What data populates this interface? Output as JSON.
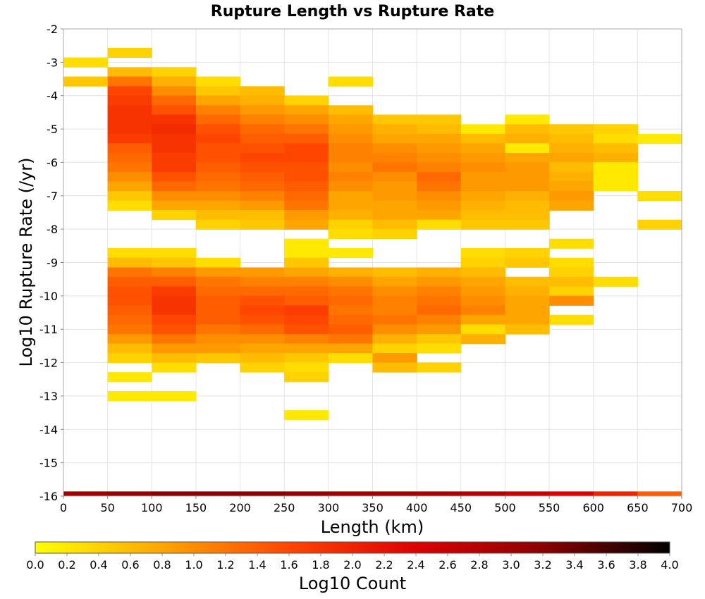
{
  "chart_data": {
    "type": "heatmap",
    "title": "Rupture Length vs Rupture Rate",
    "xlabel": "Length (km)",
    "ylabel": "Log10 Rupture Rate (/yr)",
    "xlim": [
      0,
      700
    ],
    "ylim": [
      -16,
      -2
    ],
    "x_ticks": [
      "0",
      "50",
      "100",
      "150",
      "200",
      "250",
      "300",
      "350",
      "400",
      "450",
      "500",
      "550",
      "600",
      "650",
      "700"
    ],
    "y_ticks": [
      "-2",
      "-3",
      "-4",
      "-5",
      "-6",
      "-7",
      "-8",
      "-9",
      "-10",
      "-11",
      "-12",
      "-13",
      "-14",
      "-15",
      "-16"
    ],
    "x_bin_width": 50,
    "y_bin_height": 0.286,
    "grid": true,
    "colorbar": {
      "label": "Log10 Count",
      "min": 0.0,
      "max": 4.0,
      "ticks": [
        "0.0",
        "0.2",
        "0.4",
        "0.6",
        "0.8",
        "1.0",
        "1.2",
        "1.4",
        "1.6",
        "1.8",
        "2.0",
        "2.2",
        "2.4",
        "2.6",
        "2.8",
        "3.0",
        "3.2",
        "3.4",
        "3.6",
        "3.8",
        "4.0"
      ],
      "colors": [
        "#ffff00",
        "#ffa500",
        "#ff4500",
        "#dd0000",
        "#8b0000",
        "#000000"
      ],
      "placement": "bottom"
    },
    "cells": [
      {
        "x": 0,
        "y": [
          -3.0,
          -3.57
        ],
        "v": [
          0.3,
          0.5
        ]
      },
      {
        "x": 50,
        "y": [
          -2.71,
          -3.29,
          -3.57,
          -3.86,
          -4.14,
          -4.43,
          -4.71,
          -5.0,
          -5.29,
          -5.57,
          -5.86,
          -6.14,
          -6.43,
          -6.71,
          -7.0,
          -7.29
        ],
        "v": [
          0.4,
          0.6,
          1.2,
          1.6,
          1.7,
          1.8,
          1.8,
          1.8,
          1.7,
          1.4,
          1.3,
          1.2,
          1.0,
          0.8,
          0.5,
          0.3
        ]
      },
      {
        "x": 100,
        "y": [
          -3.29,
          -3.57,
          -3.86,
          -4.14,
          -4.43,
          -4.71,
          -5.0,
          -5.29,
          -5.57,
          -5.86,
          -6.14,
          -6.43,
          -6.71,
          -7.0,
          -7.29,
          -7.57
        ],
        "v": [
          0.4,
          0.7,
          1.0,
          1.3,
          1.5,
          1.8,
          1.9,
          1.8,
          1.8,
          1.7,
          1.7,
          1.5,
          1.3,
          1.0,
          0.8,
          0.4
        ]
      },
      {
        "x": 150,
        "y": [
          -3.57,
          -3.86,
          -4.14,
          -4.43,
          -4.71,
          -5.0,
          -5.29,
          -5.57,
          -5.86,
          -6.14,
          -6.43,
          -6.71,
          -7.0,
          -7.29,
          -7.57,
          -7.86
        ],
        "v": [
          0.3,
          0.5,
          0.8,
          1.1,
          1.3,
          1.5,
          1.6,
          1.5,
          1.5,
          1.4,
          1.3,
          1.2,
          1.0,
          0.8,
          0.6,
          0.4
        ]
      },
      {
        "x": 200,
        "y": [
          -3.86,
          -4.14,
          -4.43,
          -4.71,
          -5.0,
          -5.29,
          -5.57,
          -5.86,
          -6.14,
          -6.43,
          -6.71,
          -7.0,
          -7.29,
          -7.57,
          -7.86
        ],
        "v": [
          0.6,
          0.7,
          0.9,
          1.1,
          1.3,
          1.4,
          1.5,
          1.6,
          1.5,
          1.4,
          1.3,
          1.1,
          0.9,
          0.6,
          0.5
        ]
      },
      {
        "x": 250,
        "y": [
          -4.14,
          -4.43,
          -4.71,
          -5.0,
          -5.29,
          -5.57,
          -5.86,
          -6.14,
          -6.43,
          -6.71,
          -7.0,
          -7.29,
          -7.57,
          -7.86
        ],
        "v": [
          0.4,
          0.8,
          1.0,
          1.2,
          1.4,
          1.6,
          1.6,
          1.5,
          1.5,
          1.4,
          1.3,
          1.2,
          0.9,
          0.8
        ]
      },
      {
        "x": 300,
        "y": [
          -3.57,
          -4.43,
          -4.71,
          -5.0,
          -5.29,
          -5.57,
          -5.86,
          -6.14,
          -6.43,
          -6.71,
          -7.0,
          -7.29,
          -7.57,
          -7.86,
          -8.14
        ],
        "v": [
          0.3,
          0.6,
          0.8,
          0.9,
          1.0,
          1.1,
          1.1,
          1.0,
          1.1,
          1.0,
          0.8,
          0.8,
          0.7,
          0.4,
          0.3
        ]
      },
      {
        "x": 350,
        "y": [
          -4.71,
          -5.0,
          -5.29,
          -5.57,
          -5.86,
          -6.14,
          -6.43,
          -6.71,
          -7.0,
          -7.29,
          -7.57,
          -7.86,
          -8.14
        ],
        "v": [
          0.5,
          0.7,
          0.8,
          1.0,
          1.1,
          1.2,
          1.0,
          0.9,
          0.9,
          0.8,
          0.8,
          0.6,
          0.4
        ]
      },
      {
        "x": 400,
        "y": [
          -4.71,
          -5.0,
          -5.29,
          -5.57,
          -5.86,
          -6.14,
          -6.43,
          -6.71,
          -7.0,
          -7.29,
          -7.57,
          -7.86
        ],
        "v": [
          0.5,
          0.6,
          0.8,
          0.9,
          1.0,
          1.1,
          1.3,
          1.2,
          1.0,
          0.9,
          0.8,
          0.3
        ]
      },
      {
        "x": 450,
        "y": [
          -5.0,
          -5.29,
          -5.57,
          -5.86,
          -6.14,
          -6.43,
          -6.71,
          -7.0,
          -7.29,
          -7.57,
          -7.86
        ],
        "v": [
          0.2,
          0.6,
          0.8,
          0.9,
          1.0,
          0.9,
          0.9,
          0.8,
          0.7,
          0.6,
          0.5
        ]
      },
      {
        "x": 500,
        "y": [
          -4.71,
          -5.0,
          -5.29,
          -5.57,
          -5.86,
          -6.14,
          -6.43,
          -6.71,
          -7.0,
          -7.29,
          -7.57,
          -7.86
        ],
        "v": [
          0.2,
          0.6,
          0.7,
          0.2,
          0.8,
          0.9,
          0.9,
          0.9,
          0.7,
          0.6,
          0.6,
          0.5
        ]
      },
      {
        "x": 550,
        "y": [
          -5.0,
          -5.29,
          -5.57,
          -5.86,
          -6.14,
          -6.43,
          -6.71,
          -7.0,
          -7.29
        ],
        "v": [
          0.5,
          0.6,
          0.7,
          0.8,
          0.6,
          0.7,
          0.8,
          0.9,
          0.8
        ]
      },
      {
        "x": 600,
        "y": [
          -5.0,
          -5.29,
          -5.57,
          -5.86,
          -6.14,
          -6.43,
          -6.71
        ],
        "v": [
          0.4,
          0.3,
          0.6,
          0.7,
          0.2,
          0.2,
          0.2
        ]
      },
      {
        "x": 650,
        "y": [
          -5.29,
          -7.0,
          -7.86
        ],
        "v": [
          0.2,
          0.3,
          0.4
        ]
      },
      {
        "x": 50,
        "y": [
          -8.71,
          -9.0,
          -9.29,
          -9.57,
          -9.86,
          -10.14,
          -10.43,
          -10.71,
          -11.0,
          -11.29,
          -11.57,
          -11.86,
          -12.43,
          -13.0
        ],
        "v": [
          0.3,
          0.6,
          1.2,
          1.4,
          1.5,
          1.5,
          1.4,
          1.3,
          1.2,
          0.9,
          0.6,
          0.4,
          0.2,
          0.2
        ]
      },
      {
        "x": 100,
        "y": [
          -8.71,
          -9.0,
          -9.29,
          -9.57,
          -9.86,
          -10.14,
          -10.43,
          -10.71,
          -11.0,
          -11.29,
          -11.57,
          -11.86,
          -12.14,
          -13.0
        ],
        "v": [
          0.3,
          0.5,
          1.1,
          1.4,
          1.7,
          1.8,
          1.8,
          1.6,
          1.5,
          1.2,
          0.9,
          0.6,
          0.3,
          0.2
        ]
      },
      {
        "x": 150,
        "y": [
          -9.0,
          -9.29,
          -9.57,
          -9.86,
          -10.14,
          -10.43,
          -10.71,
          -11.0,
          -11.29,
          -11.57,
          -11.86
        ],
        "v": [
          0.3,
          0.9,
          1.2,
          1.3,
          1.4,
          1.4,
          1.4,
          1.2,
          1.0,
          0.9,
          0.5
        ]
      },
      {
        "x": 200,
        "y": [
          -9.29,
          -9.57,
          -9.86,
          -10.14,
          -10.43,
          -10.71,
          -11.0,
          -11.29,
          -11.57,
          -11.86,
          -12.14
        ],
        "v": [
          0.9,
          1.1,
          1.3,
          1.5,
          1.6,
          1.5,
          1.3,
          1.0,
          0.8,
          0.6,
          0.4
        ]
      },
      {
        "x": 250,
        "y": [
          -8.43,
          -8.71,
          -9.0,
          -9.29,
          -9.57,
          -9.86,
          -10.14,
          -10.43,
          -10.71,
          -11.0,
          -11.29,
          -11.57,
          -11.86,
          -12.14,
          -12.43,
          -13.57
        ],
        "v": [
          0.2,
          0.2,
          0.5,
          0.8,
          1.1,
          1.3,
          1.4,
          1.7,
          1.6,
          1.5,
          1.1,
          0.8,
          0.5,
          0.3,
          0.4,
          0.2
        ]
      },
      {
        "x": 300,
        "y": [
          -8.71,
          -9.29,
          -9.57,
          -9.86,
          -10.14,
          -10.43,
          -10.71,
          -11.0,
          -11.29,
          -11.57,
          -11.86
        ],
        "v": [
          0.2,
          0.7,
          1.0,
          1.2,
          1.3,
          1.2,
          1.3,
          1.4,
          1.2,
          0.8,
          0.3
        ]
      },
      {
        "x": 350,
        "y": [
          -9.29,
          -9.57,
          -9.86,
          -10.14,
          -10.43,
          -10.71,
          -11.0,
          -11.29,
          -11.57,
          -11.86,
          -12.14
        ],
        "v": [
          0.6,
          0.8,
          1.0,
          1.1,
          1.1,
          1.2,
          1.0,
          0.7,
          0.4,
          0.9,
          0.6
        ]
      },
      {
        "x": 400,
        "y": [
          -9.29,
          -9.57,
          -9.86,
          -10.14,
          -10.43,
          -10.71,
          -11.0,
          -11.29,
          -11.57,
          -12.14
        ],
        "v": [
          0.7,
          0.9,
          1.1,
          1.2,
          1.3,
          1.1,
          0.9,
          0.5,
          0.3,
          0.4
        ]
      },
      {
        "x": 450,
        "y": [
          -8.71,
          -9.0,
          -9.29,
          -9.57,
          -9.86,
          -10.14,
          -10.43,
          -10.71,
          -11.0,
          -11.29
        ],
        "v": [
          0.3,
          0.4,
          0.6,
          0.8,
          0.9,
          1.0,
          1.1,
          0.8,
          0.3,
          0.7
        ]
      },
      {
        "x": 500,
        "y": [
          -8.71,
          -9.0,
          -9.57,
          -9.86,
          -10.14,
          -10.43,
          -10.71,
          -11.0
        ],
        "v": [
          0.4,
          0.5,
          0.6,
          0.7,
          0.8,
          0.8,
          0.8,
          0.6
        ]
      },
      {
        "x": 550,
        "y": [
          -8.43,
          -9.0,
          -9.29,
          -9.57,
          -9.86,
          -10.14,
          -10.71
        ],
        "v": [
          0.3,
          0.3,
          0.4,
          0.6,
          0.4,
          1.0,
          0.3
        ]
      },
      {
        "x": 600,
        "y": [
          -9.57
        ],
        "v": [
          0.3
        ]
      }
    ],
    "baseline": {
      "y_range": [
        -16.0,
        -15.86
      ],
      "values": [
        3.0,
        3.1,
        3.2,
        3.2,
        3.2,
        3.1,
        3.0,
        3.0,
        2.9,
        2.8,
        2.6,
        2.4,
        2.0,
        1.4
      ]
    }
  }
}
